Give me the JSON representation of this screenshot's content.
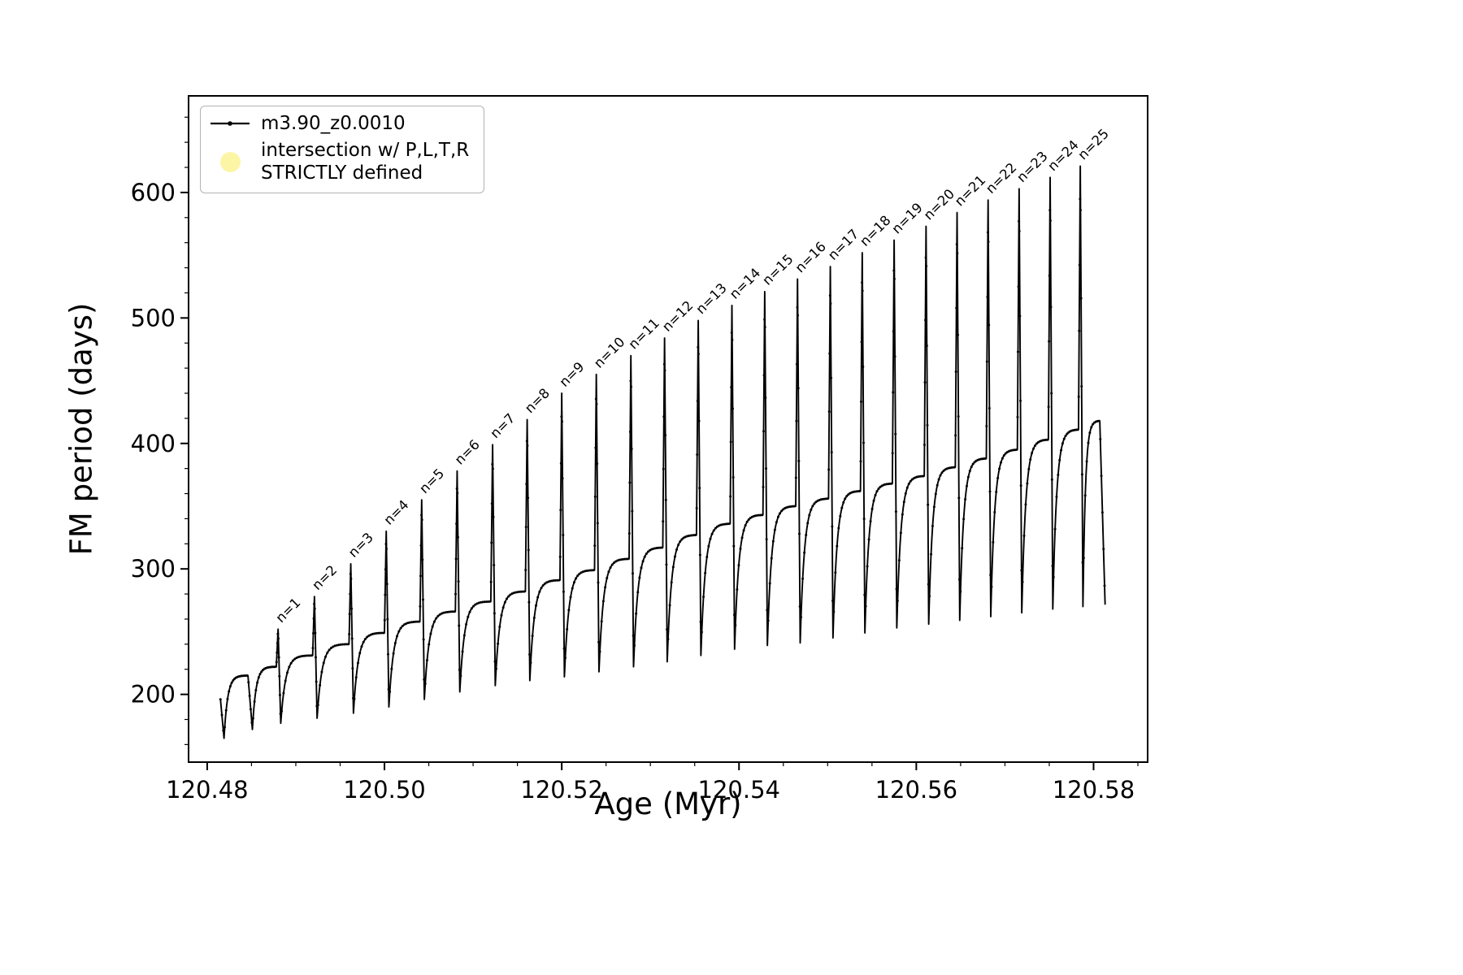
{
  "chart_data": {
    "type": "line",
    "title": "",
    "xlabel": "Age (Myr)",
    "ylabel": "FM period (days)",
    "xlim": [
      120.4779,
      120.5861
    ],
    "ylim": [
      146,
      677
    ],
    "grid": false,
    "line_color": "#000000",
    "xticks": {
      "values": [
        120.48,
        120.5,
        120.52,
        120.54,
        120.56,
        120.58
      ],
      "labels": [
        "120.48",
        "120.50",
        "120.52",
        "120.54",
        "120.56",
        "120.58"
      ]
    },
    "yticks": {
      "values": [
        200,
        300,
        400,
        500,
        600
      ],
      "labels": [
        "200",
        "300",
        "400",
        "500",
        "600"
      ]
    },
    "x_minor_step": 0.005,
    "y_minor_step": 20,
    "legend": {
      "position": "upper left",
      "entries": [
        {
          "label": "m3.90_z0.0010",
          "marker": "line-dot",
          "color": "#000000"
        },
        {
          "label": "intersection w/ P,L,T,R\nSTRICTLY defined",
          "marker": "circle",
          "color": "#fdf5a6"
        }
      ]
    },
    "series_name": "m3.90_z0.0010",
    "curve": {
      "start": {
        "x": 120.4815,
        "y": 196
      },
      "first_dip": {
        "x": 120.4819,
        "y": 165
      },
      "cycles": [
        {
          "label": null,
          "spike_x": 120.4848,
          "plateau": 215,
          "peak": 215,
          "post_dip": 172
        },
        {
          "label": "n=1",
          "spike_x": 120.488,
          "plateau": 222,
          "peak": 252,
          "post_dip": 177
        },
        {
          "label": "n=2",
          "spike_x": 120.4921,
          "plateau": 231,
          "peak": 278,
          "post_dip": 181
        },
        {
          "label": "n=3",
          "spike_x": 120.4962,
          "plateau": 240,
          "peak": 304,
          "post_dip": 185
        },
        {
          "label": "n=4",
          "spike_x": 120.5002,
          "plateau": 249,
          "peak": 330,
          "post_dip": 190
        },
        {
          "label": "n=5",
          "spike_x": 120.5042,
          "plateau": 258,
          "peak": 355,
          "post_dip": 196
        },
        {
          "label": "n=6",
          "spike_x": 120.5082,
          "plateau": 266,
          "peak": 378,
          "post_dip": 202
        },
        {
          "label": "n=7",
          "spike_x": 120.5122,
          "plateau": 274,
          "peak": 399,
          "post_dip": 207
        },
        {
          "label": "n=8",
          "spike_x": 120.5161,
          "plateau": 282,
          "peak": 419,
          "post_dip": 211
        },
        {
          "label": "n=9",
          "spike_x": 120.52,
          "plateau": 291,
          "peak": 440,
          "post_dip": 214
        },
        {
          "label": "n=10",
          "spike_x": 120.5239,
          "plateau": 299,
          "peak": 455,
          "post_dip": 218
        },
        {
          "label": "n=11",
          "spike_x": 120.5278,
          "plateau": 308,
          "peak": 470,
          "post_dip": 222
        },
        {
          "label": "n=12",
          "spike_x": 120.5316,
          "plateau": 317,
          "peak": 484,
          "post_dip": 226
        },
        {
          "label": "n=13",
          "spike_x": 120.5354,
          "plateau": 327,
          "peak": 498,
          "post_dip": 231
        },
        {
          "label": "n=14",
          "spike_x": 120.5392,
          "plateau": 336,
          "peak": 510,
          "post_dip": 236
        },
        {
          "label": "n=15",
          "spike_x": 120.5429,
          "plateau": 343,
          "peak": 521,
          "post_dip": 239
        },
        {
          "label": "n=16",
          "spike_x": 120.5466,
          "plateau": 350,
          "peak": 531,
          "post_dip": 241
        },
        {
          "label": "n=17",
          "spike_x": 120.5503,
          "plateau": 356,
          "peak": 541,
          "post_dip": 245
        },
        {
          "label": "n=18",
          "spike_x": 120.5539,
          "plateau": 362,
          "peak": 552,
          "post_dip": 249
        },
        {
          "label": "n=19",
          "spike_x": 120.5575,
          "plateau": 368,
          "peak": 562,
          "post_dip": 253
        },
        {
          "label": "n=20",
          "spike_x": 120.5611,
          "plateau": 374,
          "peak": 573,
          "post_dip": 256
        },
        {
          "label": "n=21",
          "spike_x": 120.5646,
          "plateau": 381,
          "peak": 584,
          "post_dip": 259
        },
        {
          "label": "n=22",
          "spike_x": 120.5681,
          "plateau": 388,
          "peak": 594,
          "post_dip": 262
        },
        {
          "label": "n=23",
          "spike_x": 120.5716,
          "plateau": 395,
          "peak": 603,
          "post_dip": 265
        },
        {
          "label": "n=24",
          "spike_x": 120.5751,
          "plateau": 403,
          "peak": 612,
          "post_dip": 268
        },
        {
          "label": "n=25",
          "spike_x": 120.5785,
          "plateau": 411,
          "peak": 621,
          "post_dip": 270
        }
      ],
      "final": {
        "top_x": 120.5807,
        "top": 418,
        "end_x": 120.5813,
        "end_y": 272
      }
    }
  }
}
